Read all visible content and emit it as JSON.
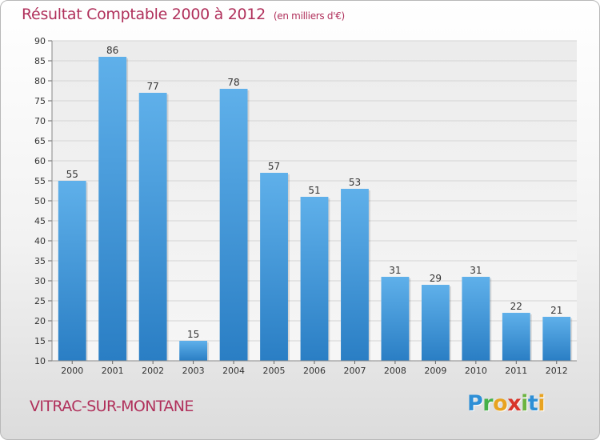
{
  "header": {
    "title": "Résultat Comptable 2000 à 2012",
    "unit": "(en milliers d'€)"
  },
  "footer": {
    "commune": "VITRAC-SUR-MONTANE",
    "logo": [
      "P",
      "r",
      "o",
      "x",
      "i",
      "t",
      "i"
    ]
  },
  "colors": {
    "title": "#b0305b",
    "bar_top": "#5fb0ea",
    "bar_bottom": "#2a7ec4",
    "grid": "#d4d4d4"
  },
  "chart_data": {
    "type": "bar",
    "title": "Résultat Comptable 2000 à 2012",
    "subtitle": "(en milliers d'€)",
    "xlabel": "",
    "ylabel": "",
    "categories": [
      "2000",
      "2001",
      "2002",
      "2003",
      "2004",
      "2005",
      "2006",
      "2007",
      "2008",
      "2009",
      "2010",
      "2011",
      "2012"
    ],
    "values": [
      55,
      86,
      77,
      15,
      78,
      57,
      51,
      53,
      31,
      29,
      31,
      22,
      21
    ],
    "ylim": [
      10,
      90
    ],
    "yticks": [
      10,
      15,
      20,
      25,
      30,
      35,
      40,
      45,
      50,
      55,
      60,
      65,
      70,
      75,
      80,
      85,
      90
    ],
    "grid": true,
    "legend": "none"
  }
}
